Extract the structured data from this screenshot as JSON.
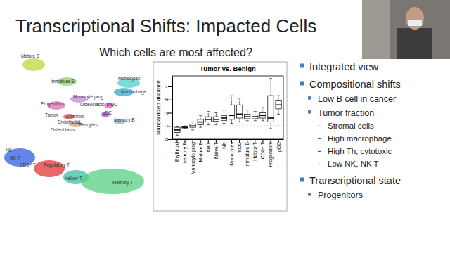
{
  "slide": {
    "title": "Transcriptional Shifts: Impacted Cells",
    "subtitle": "Which cells are most affected?",
    "umap_labels": [
      "Mature B",
      "Immature B",
      "Monocytes",
      "Macrophage",
      "Monocyte prog",
      "Osteoclasts",
      "mDC",
      "Progenitors",
      "Tumor",
      "Erythroid",
      "pDC",
      "Endothelial",
      "Pericytes",
      "Osteoblasts",
      "Memory B",
      "NK",
      "NK T",
      "CD8+ T",
      "Regulatory T",
      "Helper T",
      "Memory T"
    ],
    "bullets": [
      {
        "text": "Integrated view"
      },
      {
        "text": "Compositional shifts",
        "items": [
          {
            "text": "Low B cell in cancer"
          },
          {
            "text": "Tumor fraction",
            "items": [
              {
                "text": "Stromal cells"
              },
              {
                "text": "High macrophage"
              },
              {
                "text": "High Th, cytotoxic"
              },
              {
                "text": "Low NK, NK T"
              }
            ]
          }
        ]
      },
      {
        "text": "Transcriptional state",
        "items": [
          {
            "text": "Progenitors"
          }
        ]
      }
    ]
  },
  "chart_data": {
    "type": "box",
    "title": "Tumor vs. Benign",
    "ylabel": "standardized distance",
    "categories": [
      "Erythroid",
      "memory B",
      "Monocyte prog",
      "Mature B",
      "NKT",
      "Naive T",
      "NK",
      "Monocytes",
      "mDC",
      "Immature B",
      "Helper T",
      "CD8+ T",
      "Progenitors",
      "pDC"
    ],
    "whisker_low": [
      0.3,
      0.8,
      0.7,
      0.9,
      1.1,
      1.1,
      1.2,
      1.2,
      1.3,
      1.4,
      1.4,
      1.4,
      0.8,
      1.9
    ],
    "q1": [
      0.5,
      0.85,
      0.9,
      1.1,
      1.3,
      1.35,
      1.4,
      1.5,
      1.6,
      1.55,
      1.55,
      1.6,
      1.3,
      2.3
    ],
    "median": [
      0.7,
      0.9,
      1.0,
      1.3,
      1.5,
      1.5,
      1.6,
      1.8,
      1.9,
      1.7,
      1.7,
      1.8,
      1.6,
      2.6
    ],
    "q3": [
      0.9,
      0.95,
      1.15,
      1.5,
      1.7,
      1.7,
      1.8,
      2.6,
      2.6,
      1.9,
      1.85,
      2.0,
      3.3,
      2.9
    ],
    "whisker_high": [
      0.95,
      1.0,
      1.3,
      1.8,
      2.1,
      2.0,
      2.2,
      3.3,
      3.1,
      2.2,
      2.1,
      2.4,
      4.6,
      3.3
    ],
    "reference_value": 1,
    "color": "#ffffff",
    "ylim": [
      0,
      4.8
    ],
    "yticks": [
      0,
      1,
      2,
      3,
      4
    ]
  }
}
